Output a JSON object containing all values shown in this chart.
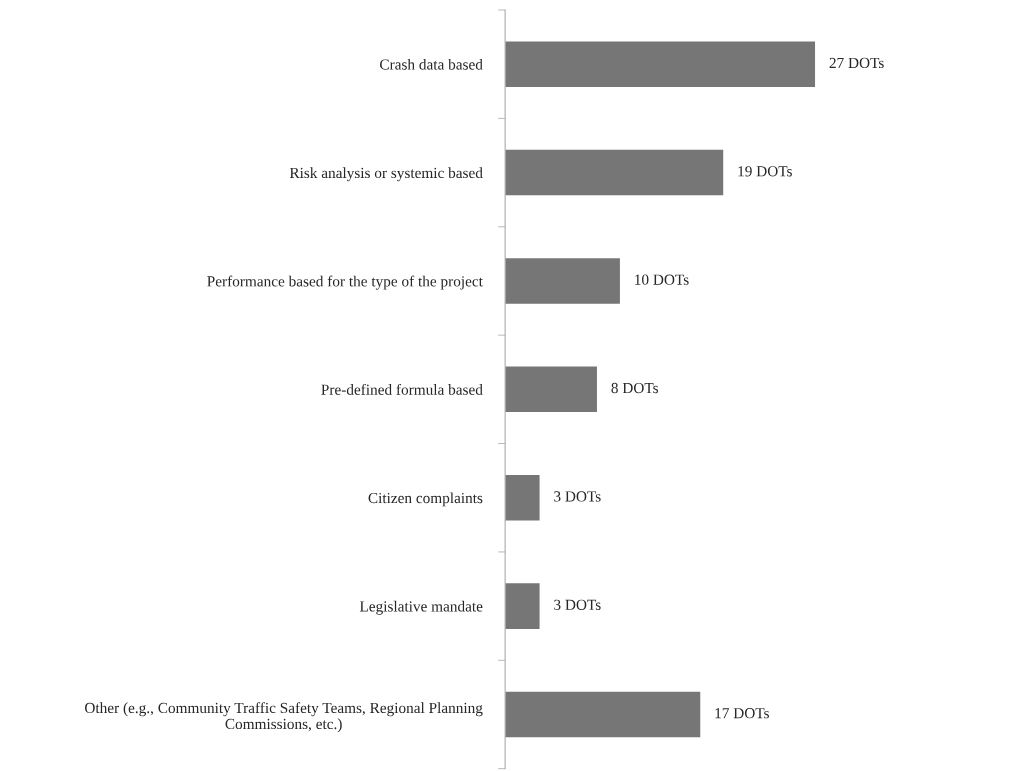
{
  "chart_data": {
    "type": "bar",
    "orientation": "horizontal",
    "categories": [
      "Crash data based",
      "Risk analysis or systemic based",
      "Performance based for the type of the project",
      "Pre-defined formula based",
      "Citizen complaints",
      "Legislative mandate",
      "Other (e.g., Community Traffic Safety Teams, Regional Planning Commissions, etc.)"
    ],
    "values": [
      27,
      19,
      10,
      8,
      3,
      3,
      17
    ],
    "value_labels": [
      "27 DOTs",
      "19 DOTs",
      "10 DOTs",
      "8 DOTs",
      "3 DOTs",
      "3 DOTs",
      "17 DOTs"
    ],
    "color": "#767676",
    "grid": false,
    "legend": false
  }
}
